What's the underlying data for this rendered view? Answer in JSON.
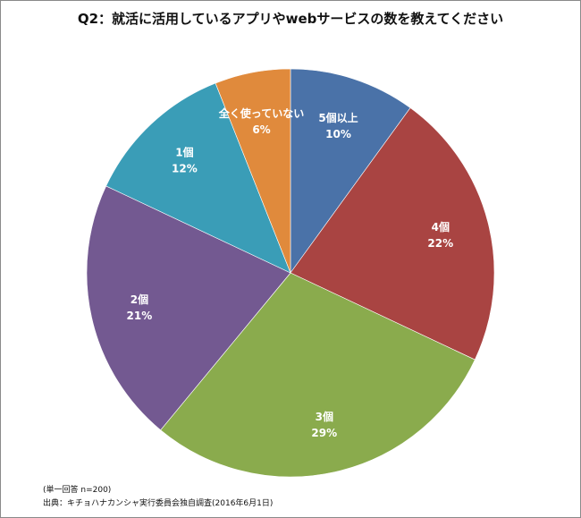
{
  "chart_data": {
    "type": "pie",
    "title": "Q2：就活に活用しているアプリやwebサービスの数を教えてください",
    "start_angle_deg": 0,
    "direction": "clockwise",
    "slices": [
      {
        "label": "5個以上",
        "percent_label": "10%",
        "value": 10,
        "color": "#4a72a8"
      },
      {
        "label": "4個",
        "percent_label": "22%",
        "value": 22,
        "color": "#a94442"
      },
      {
        "label": "3個",
        "percent_label": "29%",
        "value": 29,
        "color": "#8aab4d"
      },
      {
        "label": "2個",
        "percent_label": "21%",
        "value": 21,
        "color": "#735991"
      },
      {
        "label": "1個",
        "percent_label": "12%",
        "value": 12,
        "color": "#3a9db7"
      },
      {
        "label": "全く使っていない",
        "percent_label": "6%",
        "value": 6,
        "color": "#e08a3c"
      }
    ],
    "legend": "none"
  },
  "notes": {
    "sample": "(単一回答 n=200)",
    "source": "出典：キチョハナカンシャ実行委員会独自調査(2016年6月1日)"
  }
}
